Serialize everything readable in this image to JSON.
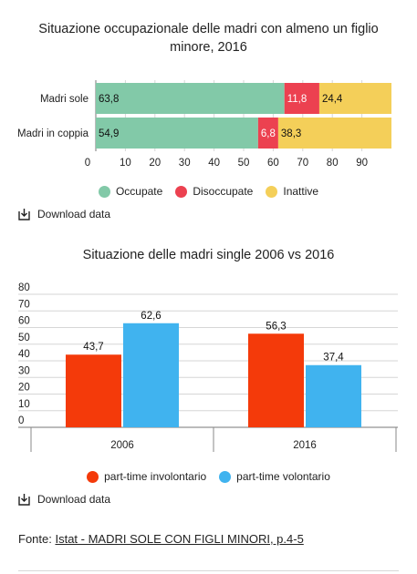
{
  "chart_data": [
    {
      "type": "bar",
      "orientation": "horizontal",
      "stacked": true,
      "title": "Situazione occupazionale delle madri con almeno un figlio minore, 2016",
      "categories": [
        "Madri sole",
        "Madri in coppia"
      ],
      "series": [
        {
          "name": "Occupate",
          "color": "#82c9a8",
          "values": [
            63.8,
            54.9
          ],
          "labels": [
            "63,8",
            "54,9"
          ]
        },
        {
          "name": "Disoccupate",
          "color": "#ec4150",
          "values": [
            11.8,
            6.8
          ],
          "labels": [
            "11,8",
            "6,8"
          ]
        },
        {
          "name": "Inattive",
          "color": "#f4cf59",
          "values": [
            24.4,
            38.3
          ],
          "labels": [
            "24,4",
            "38,3"
          ]
        }
      ],
      "xlim": [
        0,
        100
      ],
      "xticks": [
        0,
        10,
        20,
        30,
        40,
        50,
        60,
        70,
        80,
        90
      ],
      "grid": true,
      "legend": "bottom"
    },
    {
      "type": "bar",
      "orientation": "vertical",
      "title": "Situazione delle madri single 2006 vs 2016",
      "categories": [
        "2006",
        "2016"
      ],
      "series": [
        {
          "name": "part-time involontario",
          "color": "#f43a0a",
          "values": [
            43.7,
            56.3
          ],
          "labels": [
            "43,7",
            "56,3"
          ]
        },
        {
          "name": "part-time volontario",
          "color": "#40b3ef",
          "values": [
            62.6,
            37.4
          ],
          "labels": [
            "62,6",
            "37,4"
          ]
        }
      ],
      "ylim": [
        0,
        80
      ],
      "yticks": [
        0,
        10,
        20,
        30,
        40,
        50,
        60,
        70,
        80
      ],
      "grid": true,
      "legend": "bottom"
    }
  ],
  "download": {
    "label1": "Download data",
    "label2": "Download data"
  },
  "source": {
    "prefix": "Fonte: ",
    "link_text": "Istat - MADRI SOLE CON FIGLI MINORI, p.4-5"
  }
}
